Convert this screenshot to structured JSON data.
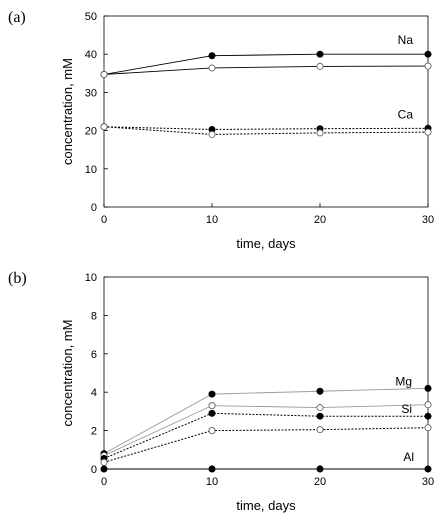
{
  "chart_data": [
    {
      "type": "line",
      "panel_label": "(a)",
      "xlabel": "time, days",
      "ylabel": "concentration, mM",
      "xlim": [
        0,
        30
      ],
      "ylim": [
        0,
        50
      ],
      "xticks": [
        0,
        10,
        20,
        30
      ],
      "yticks": [
        0,
        10,
        20,
        30,
        40,
        50
      ],
      "x": [
        0,
        10,
        20,
        30
      ],
      "grid": false,
      "legend": "none",
      "series": [
        {
          "label": "Na",
          "label_anchor_index": 3,
          "label_offset": [
            -15,
            -10
          ],
          "values": [
            34.7,
            39.6,
            40.0,
            40.0
          ],
          "marker": "filled",
          "line": "solid",
          "color": "#000000"
        },
        {
          "label": "",
          "values": [
            34.7,
            36.4,
            36.8,
            36.9
          ],
          "marker": "open",
          "line": "solid",
          "color": "#000000"
        },
        {
          "label": "Ca",
          "label_anchor_index": 3,
          "label_offset": [
            -15,
            -10
          ],
          "values": [
            21.0,
            20.3,
            20.5,
            20.6
          ],
          "marker": "filled",
          "line": "dotted",
          "color": "#000000"
        },
        {
          "label": "",
          "values": [
            21.0,
            19.0,
            19.4,
            19.6
          ],
          "marker": "open",
          "line": "dotted",
          "color": "#000000"
        }
      ]
    },
    {
      "type": "line",
      "panel_label": "(b)",
      "xlabel": "time, days",
      "ylabel": "concentration, mM",
      "xlim": [
        0,
        30
      ],
      "ylim": [
        0,
        10
      ],
      "xticks": [
        0,
        10,
        20,
        30
      ],
      "yticks": [
        0,
        2,
        4,
        6,
        8,
        10
      ],
      "x": [
        0,
        10,
        20,
        30
      ],
      "grid": false,
      "legend": "none",
      "series": [
        {
          "label": "Mg",
          "label_anchor_index": 3,
          "label_offset": [
            -16,
            -3
          ],
          "values": [
            0.8,
            3.9,
            4.05,
            4.2
          ],
          "marker": "filled",
          "line": "solid",
          "color": "#9a9a9a"
        },
        {
          "label": "",
          "values": [
            0.7,
            3.3,
            3.2,
            3.35
          ],
          "marker": "open",
          "line": "solid",
          "color": "#9a9a9a"
        },
        {
          "label": "Si",
          "label_anchor_index": 3,
          "label_offset": [
            -16,
            -3
          ],
          "values": [
            0.55,
            2.9,
            2.75,
            2.75
          ],
          "marker": "filled",
          "line": "dotted",
          "color": "#000000"
        },
        {
          "label": "",
          "values": [
            0.35,
            2.0,
            2.05,
            2.15
          ],
          "marker": "open",
          "line": "dotted",
          "color": "#000000"
        },
        {
          "label": "Al",
          "label_anchor_index": 3,
          "label_offset": [
            -14,
            -8
          ],
          "values": [
            0.0,
            0.0,
            0.0,
            0.0
          ],
          "marker": "filled",
          "line": "solid",
          "color": "#000000"
        }
      ]
    }
  ]
}
